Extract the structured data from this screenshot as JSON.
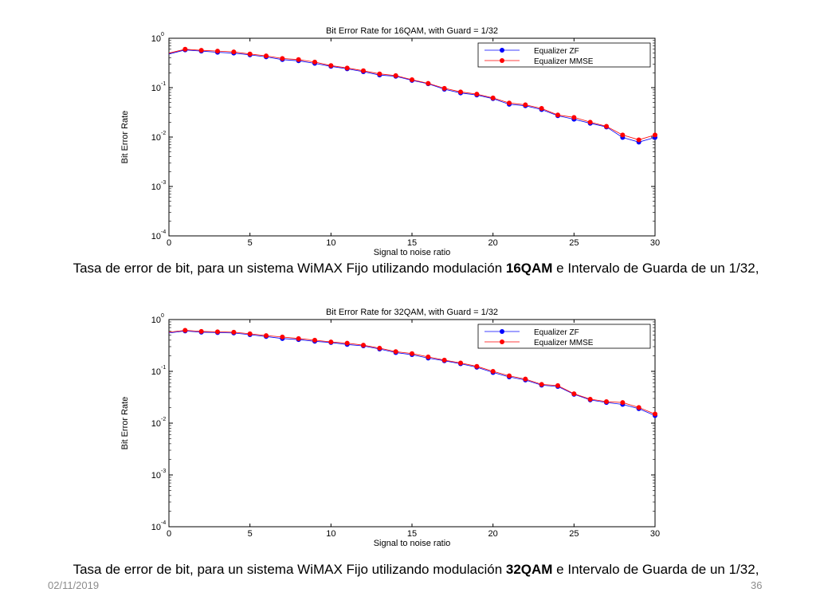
{
  "chart_data": [
    {
      "type": "line",
      "title": "Bit Error Rate for 16QAM, with Guard = 1/32",
      "xlabel": "Signal to noise ratio",
      "ylabel": "Bit Error Rate",
      "xlim": [
        0,
        30
      ],
      "ylim": [
        0.0001,
        1
      ],
      "yscale": "log",
      "xticks": [
        "0",
        "5",
        "10",
        "15",
        "20",
        "25",
        "30"
      ],
      "yticks": [
        {
          "base": "10",
          "exp": "0"
        },
        {
          "base": "10",
          "exp": "-1"
        },
        {
          "base": "10",
          "exp": "-2"
        },
        {
          "base": "10",
          "exp": "-3"
        },
        {
          "base": "10",
          "exp": "-4"
        }
      ],
      "legend_position": "top-right",
      "x": [
        0,
        1,
        2,
        3,
        4,
        5,
        6,
        7,
        8,
        9,
        10,
        11,
        12,
        13,
        14,
        15,
        16,
        17,
        18,
        19,
        20,
        21,
        22,
        23,
        24,
        25,
        26,
        27,
        28,
        29,
        30
      ],
      "series": [
        {
          "name": "Equalizer ZF",
          "color": "#0000ff",
          "values": [
            0.48,
            0.58,
            0.55,
            0.52,
            0.5,
            0.46,
            0.42,
            0.37,
            0.35,
            0.31,
            0.27,
            0.24,
            0.21,
            0.18,
            0.17,
            0.14,
            0.12,
            0.093,
            0.078,
            0.071,
            0.06,
            0.046,
            0.043,
            0.036,
            0.027,
            0.023,
            0.019,
            0.016,
            0.0098,
            0.0079,
            0.0098
          ]
        },
        {
          "name": "Equalizer MMSE",
          "color": "#ff0000",
          "values": [
            0.5,
            0.6,
            0.57,
            0.55,
            0.53,
            0.48,
            0.44,
            0.39,
            0.37,
            0.33,
            0.28,
            0.25,
            0.22,
            0.19,
            0.175,
            0.145,
            0.122,
            0.097,
            0.082,
            0.074,
            0.062,
            0.049,
            0.045,
            0.038,
            0.028,
            0.025,
            0.02,
            0.0165,
            0.011,
            0.0088,
            0.011
          ]
        }
      ]
    },
    {
      "type": "line",
      "title": "Bit Error Rate for 32QAM, with Guard = 1/32",
      "xlabel": "Signal to noise ratio",
      "ylabel": "Bit Error Rate",
      "xlim": [
        0,
        30
      ],
      "ylim": [
        0.0001,
        1
      ],
      "yscale": "log",
      "xticks": [
        "0",
        "5",
        "10",
        "15",
        "20",
        "25",
        "30"
      ],
      "yticks": [
        {
          "base": "10",
          "exp": "0"
        },
        {
          "base": "10",
          "exp": "-1"
        },
        {
          "base": "10",
          "exp": "-2"
        },
        {
          "base": "10",
          "exp": "-3"
        },
        {
          "base": "10",
          "exp": "-4"
        }
      ],
      "legend_position": "top-right",
      "x": [
        0,
        1,
        2,
        3,
        4,
        5,
        6,
        7,
        8,
        9,
        10,
        11,
        12,
        13,
        14,
        15,
        16,
        17,
        18,
        19,
        20,
        21,
        22,
        23,
        24,
        25,
        26,
        27,
        28,
        29,
        30
      ],
      "series": [
        {
          "name": "Equalizer ZF",
          "color": "#0000ff",
          "values": [
            0.55,
            0.6,
            0.57,
            0.56,
            0.55,
            0.51,
            0.47,
            0.43,
            0.41,
            0.38,
            0.36,
            0.33,
            0.31,
            0.27,
            0.23,
            0.21,
            0.18,
            0.16,
            0.14,
            0.12,
            0.095,
            0.078,
            0.068,
            0.054,
            0.051,
            0.036,
            0.028,
            0.025,
            0.023,
            0.019,
            0.014
          ]
        },
        {
          "name": "Equalizer MMSE",
          "color": "#ff0000",
          "values": [
            0.57,
            0.62,
            0.59,
            0.58,
            0.57,
            0.53,
            0.49,
            0.46,
            0.43,
            0.4,
            0.37,
            0.35,
            0.32,
            0.28,
            0.24,
            0.22,
            0.19,
            0.165,
            0.145,
            0.125,
            0.1,
            0.082,
            0.071,
            0.056,
            0.053,
            0.037,
            0.029,
            0.026,
            0.025,
            0.02,
            0.015
          ]
        }
      ]
    }
  ],
  "captions": [
    {
      "before": "Tasa de error de bit, para un sistema WiMAX Fijo utilizando modulación ",
      "bold": "16QAM",
      "after": " e Intervalo de Guarda de un 1/32,"
    },
    {
      "before": "Tasa de error de bit, para un sistema WiMAX Fijo utilizando modulación ",
      "bold": "32QAM",
      "after": " e Intervalo de Guarda de un 1/32,"
    }
  ],
  "footer": {
    "date": "02/11/2019",
    "page": "36"
  }
}
